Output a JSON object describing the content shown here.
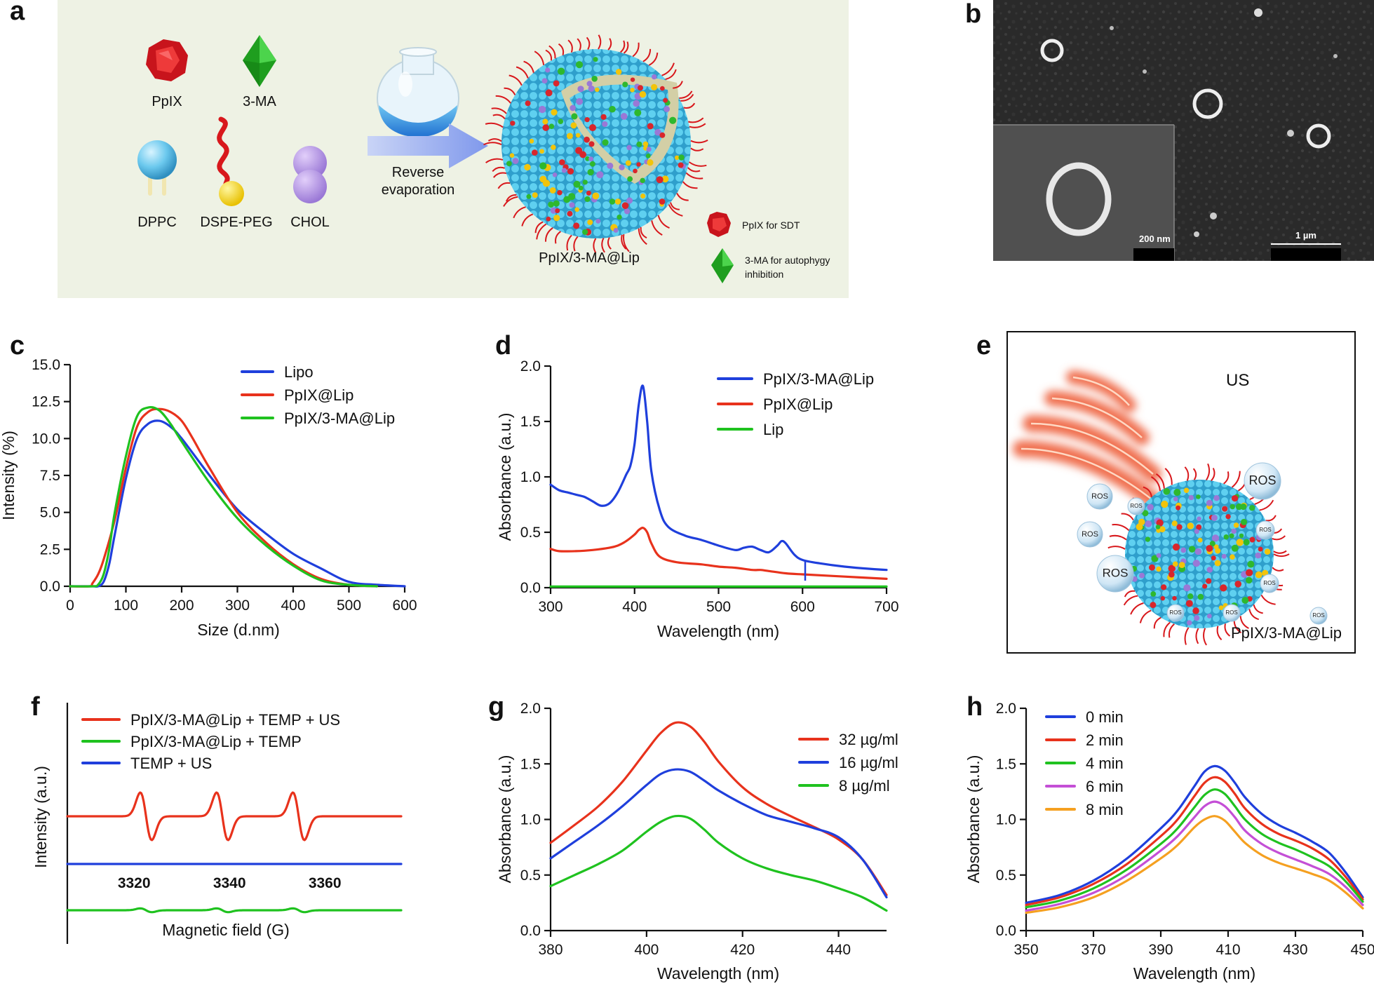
{
  "panel_labels": {
    "a": "a",
    "b": "b",
    "c": "c",
    "d": "d",
    "e": "e",
    "f": "f",
    "g": "g",
    "h": "h"
  },
  "schematic_a": {
    "components": {
      "ppix": "PpIX",
      "ma": "3-MA",
      "dppc": "DPPC",
      "dspe_peg": "DSPE-PEG",
      "chol": "CHOL"
    },
    "process": {
      "line1": "Reverse",
      "line2": "evaporation"
    },
    "product": "PpIX/3-MA@Lip",
    "legend": {
      "ppix_role": "PpIX for SDT",
      "ma_role_line1": "3-MA for autophygy",
      "ma_role_line2": "inhibition"
    },
    "colors": {
      "background": "#eef2e4",
      "arrow": "#8fa3ea",
      "lipid": "#46c0e8",
      "ppix": "#d9262c",
      "ma": "#2eb82e"
    }
  },
  "micrograph_b": {
    "scale_inset": "200 nm",
    "scale_main": "1 µm"
  },
  "schematic_e": {
    "us_label": "US",
    "product": "PpIX/3-MA@Lip",
    "ros_label": "ROS",
    "colors": {
      "waves": "#f07050",
      "bubble": "#cfe6f5"
    }
  },
  "chart_data": [
    {
      "id": "c",
      "type": "line",
      "xlabel": "Size (d.nm)",
      "ylabel": "Intensity (%)",
      "xlim": [
        0,
        600
      ],
      "ylim": [
        0,
        15
      ],
      "xticks": [
        "0",
        "100",
        "200",
        "300",
        "400",
        "500",
        "600"
      ],
      "yticks": [
        "0.0",
        "2.5",
        "5.0",
        "7.5",
        "10.0",
        "12.5",
        "15.0"
      ],
      "legend_position": "top-right",
      "series": [
        {
          "name": "Lipo",
          "color": "#1f3fdc",
          "x": [
            0,
            40,
            50,
            60,
            70,
            80,
            100,
            120,
            140,
            160,
            180,
            200,
            250,
            300,
            350,
            400,
            450,
            500,
            550,
            600
          ],
          "y": [
            0,
            0,
            0,
            0.3,
            1.5,
            3.5,
            7.3,
            10.0,
            11.0,
            11.2,
            10.8,
            10.0,
            7.5,
            5.2,
            3.6,
            2.2,
            1.2,
            0.3,
            0.1,
            0
          ]
        },
        {
          "name": "PpIX@Lip",
          "color": "#e8321c",
          "x": [
            0,
            35,
            40,
            50,
            60,
            80,
            100,
            120,
            140,
            160,
            180,
            200,
            220,
            250,
            300,
            350,
            400,
            450,
            500,
            550
          ],
          "y": [
            0,
            0,
            0.2,
            0.8,
            1.8,
            4.5,
            8.0,
            10.8,
            11.8,
            12.0,
            11.8,
            11.2,
            10.0,
            8.0,
            5.0,
            3.0,
            1.5,
            0.5,
            0.1,
            0
          ]
        },
        {
          "name": "PpIX/3-MA@Lip",
          "color": "#1fc21f",
          "x": [
            0,
            40,
            50,
            60,
            70,
            80,
            100,
            120,
            140,
            160,
            180,
            200,
            250,
            300,
            350,
            400,
            450,
            500,
            550
          ],
          "y": [
            0,
            0,
            0.1,
            0.8,
            2.5,
            5.0,
            8.8,
            11.5,
            12.1,
            11.9,
            11.0,
            9.8,
            7.0,
            4.6,
            2.8,
            1.4,
            0.4,
            0.1,
            0
          ]
        }
      ]
    },
    {
      "id": "d",
      "type": "line",
      "xlabel": "Wavelength (nm)",
      "ylabel": "Absorbance (a.u.)",
      "xlim": [
        300,
        700
      ],
      "ylim": [
        0,
        2.0
      ],
      "xticks": [
        "300",
        "400",
        "500",
        "600",
        "700"
      ],
      "yticks": [
        "0.0",
        "0.5",
        "1.0",
        "1.5",
        "2.0"
      ],
      "legend_position": "top-right",
      "series": [
        {
          "name": "PpIX/3-MA@Lip",
          "color": "#1f3fdc",
          "x": [
            300,
            310,
            320,
            330,
            340,
            350,
            360,
            370,
            380,
            390,
            395,
            400,
            405,
            410,
            415,
            420,
            430,
            440,
            460,
            480,
            500,
            520,
            530,
            540,
            550,
            560,
            570,
            575,
            580,
            590,
            600,
            620,
            650,
            680,
            700
          ],
          "y": [
            0.93,
            0.88,
            0.86,
            0.84,
            0.82,
            0.78,
            0.74,
            0.76,
            0.86,
            1.02,
            1.1,
            1.3,
            1.65,
            1.82,
            1.5,
            1.05,
            0.7,
            0.55,
            0.47,
            0.43,
            0.38,
            0.34,
            0.36,
            0.37,
            0.34,
            0.32,
            0.38,
            0.42,
            0.4,
            0.3,
            0.25,
            0.22,
            0.19,
            0.17,
            0.16
          ]
        },
        {
          "name": "PpIX@Lip",
          "color": "#e8321c",
          "x": [
            300,
            310,
            330,
            350,
            370,
            380,
            390,
            400,
            405,
            410,
            415,
            420,
            430,
            450,
            480,
            500,
            520,
            540,
            550,
            560,
            580,
            600,
            650,
            700
          ],
          "y": [
            0.35,
            0.33,
            0.33,
            0.34,
            0.36,
            0.38,
            0.42,
            0.48,
            0.52,
            0.54,
            0.5,
            0.4,
            0.28,
            0.23,
            0.21,
            0.19,
            0.18,
            0.16,
            0.16,
            0.15,
            0.13,
            0.12,
            0.1,
            0.08
          ]
        },
        {
          "name": "Lip",
          "color": "#1fc21f",
          "x": [
            300,
            350,
            400,
            450,
            500,
            550,
            600,
            650,
            700
          ],
          "y": [
            0.01,
            0.01,
            0.01,
            0.01,
            0.01,
            0.01,
            0.01,
            0.01,
            0.01
          ]
        }
      ]
    },
    {
      "id": "f",
      "type": "line",
      "xlabel": "Magnetic field (G)",
      "ylabel": "Intensity (a.u.)",
      "xlim": [
        3306,
        3376
      ],
      "xticks": [
        "3320",
        "3340",
        "3360"
      ],
      "yticks": [],
      "legend_position": "top-left",
      "peak_centers": [
        3322.5,
        3338.5,
        3354.5
      ],
      "series": [
        {
          "name": "PpIX/3-MA@Lip + TEMP + US",
          "color": "#e8321c",
          "relative_amplitude": 1.0
        },
        {
          "name": "PpIX/3-MA@Lip + TEMP",
          "color": "#1fc21f",
          "relative_amplitude": 0.08
        },
        {
          "name": "TEMP + US",
          "color": "#1f3fdc",
          "relative_amplitude": 0.0
        }
      ]
    },
    {
      "id": "g",
      "type": "line",
      "xlabel": "Wavelength (nm)",
      "ylabel": "Absorbance (a.u.)",
      "xlim": [
        380,
        450
      ],
      "ylim": [
        0,
        2.0
      ],
      "xticks": [
        "380",
        "400",
        "420",
        "440"
      ],
      "yticks": [
        "0.0",
        "0.5",
        "1.0",
        "1.5",
        "2.0"
      ],
      "legend_position": "right",
      "series": [
        {
          "name": "32 µg/ml",
          "color": "#e8321c",
          "x": [
            380,
            385,
            390,
            395,
            400,
            403,
            406,
            409,
            412,
            415,
            420,
            425,
            430,
            435,
            440,
            445,
            450
          ],
          "y": [
            0.79,
            0.95,
            1.12,
            1.34,
            1.62,
            1.78,
            1.87,
            1.84,
            1.7,
            1.52,
            1.29,
            1.14,
            1.03,
            0.93,
            0.82,
            0.64,
            0.32
          ]
        },
        {
          "name": "16 µg/ml",
          "color": "#1f3fdc",
          "x": [
            380,
            385,
            390,
            395,
            400,
            403,
            406,
            409,
            412,
            415,
            420,
            425,
            430,
            435,
            440,
            445,
            450
          ],
          "y": [
            0.65,
            0.8,
            0.95,
            1.12,
            1.31,
            1.41,
            1.45,
            1.43,
            1.35,
            1.26,
            1.14,
            1.04,
            0.98,
            0.92,
            0.84,
            0.64,
            0.3
          ]
        },
        {
          "name": " 8  µg/ml",
          "color": "#1fc21f",
          "x": [
            380,
            385,
            390,
            395,
            400,
            403,
            406,
            409,
            412,
            415,
            420,
            425,
            430,
            435,
            440,
            445,
            450
          ],
          "y": [
            0.4,
            0.5,
            0.6,
            0.72,
            0.89,
            0.98,
            1.03,
            1.01,
            0.91,
            0.79,
            0.65,
            0.56,
            0.5,
            0.45,
            0.38,
            0.3,
            0.18
          ]
        }
      ]
    },
    {
      "id": "h",
      "type": "line",
      "xlabel": "Wavelength (nm)",
      "ylabel": "Absorbance (a.u.)",
      "xlim": [
        350,
        450
      ],
      "ylim": [
        0,
        2.0
      ],
      "xticks": [
        "350",
        "370",
        "390",
        "410",
        "430",
        "450"
      ],
      "yticks": [
        "0.0",
        "0.5",
        "1.0",
        "1.5",
        "2.0"
      ],
      "legend_position": "top-left",
      "series": [
        {
          "name": "0 min",
          "color": "#1f3fdc",
          "x": [
            350,
            360,
            370,
            380,
            390,
            395,
            400,
            403,
            406,
            409,
            412,
            415,
            420,
            425,
            430,
            435,
            440,
            445,
            450
          ],
          "y": [
            0.25,
            0.32,
            0.45,
            0.65,
            0.92,
            1.08,
            1.3,
            1.43,
            1.48,
            1.44,
            1.33,
            1.2,
            1.05,
            0.95,
            0.88,
            0.8,
            0.7,
            0.52,
            0.3
          ]
        },
        {
          "name": "2 min",
          "color": "#e8321c",
          "x": [
            350,
            360,
            370,
            380,
            390,
            395,
            400,
            403,
            406,
            409,
            412,
            415,
            420,
            425,
            430,
            435,
            440,
            445,
            450
          ],
          "y": [
            0.23,
            0.3,
            0.42,
            0.6,
            0.85,
            1.0,
            1.21,
            1.33,
            1.38,
            1.34,
            1.23,
            1.1,
            0.96,
            0.87,
            0.81,
            0.74,
            0.64,
            0.48,
            0.28
          ]
        },
        {
          "name": "4 min",
          "color": "#1fc21f",
          "x": [
            350,
            360,
            370,
            380,
            390,
            395,
            400,
            403,
            406,
            409,
            412,
            415,
            420,
            425,
            430,
            435,
            440,
            445,
            450
          ],
          "y": [
            0.21,
            0.27,
            0.38,
            0.55,
            0.78,
            0.92,
            1.11,
            1.22,
            1.27,
            1.23,
            1.12,
            1.0,
            0.87,
            0.79,
            0.73,
            0.66,
            0.58,
            0.44,
            0.26
          ]
        },
        {
          "name": "6 min",
          "color": "#c44fd6",
          "x": [
            350,
            360,
            370,
            380,
            390,
            395,
            400,
            403,
            406,
            409,
            412,
            415,
            420,
            425,
            430,
            435,
            440,
            445,
            450
          ],
          "y": [
            0.18,
            0.24,
            0.34,
            0.5,
            0.72,
            0.85,
            1.02,
            1.12,
            1.16,
            1.12,
            1.02,
            0.9,
            0.78,
            0.7,
            0.64,
            0.58,
            0.51,
            0.39,
            0.23
          ]
        },
        {
          "name": "8 min",
          "color": "#f5a020",
          "x": [
            350,
            360,
            370,
            380,
            390,
            395,
            400,
            403,
            406,
            409,
            412,
            415,
            420,
            425,
            430,
            435,
            440,
            445,
            450
          ],
          "y": [
            0.16,
            0.21,
            0.3,
            0.45,
            0.65,
            0.77,
            0.93,
            1.0,
            1.03,
            0.99,
            0.89,
            0.79,
            0.68,
            0.61,
            0.56,
            0.51,
            0.45,
            0.34,
            0.2
          ]
        }
      ]
    }
  ]
}
